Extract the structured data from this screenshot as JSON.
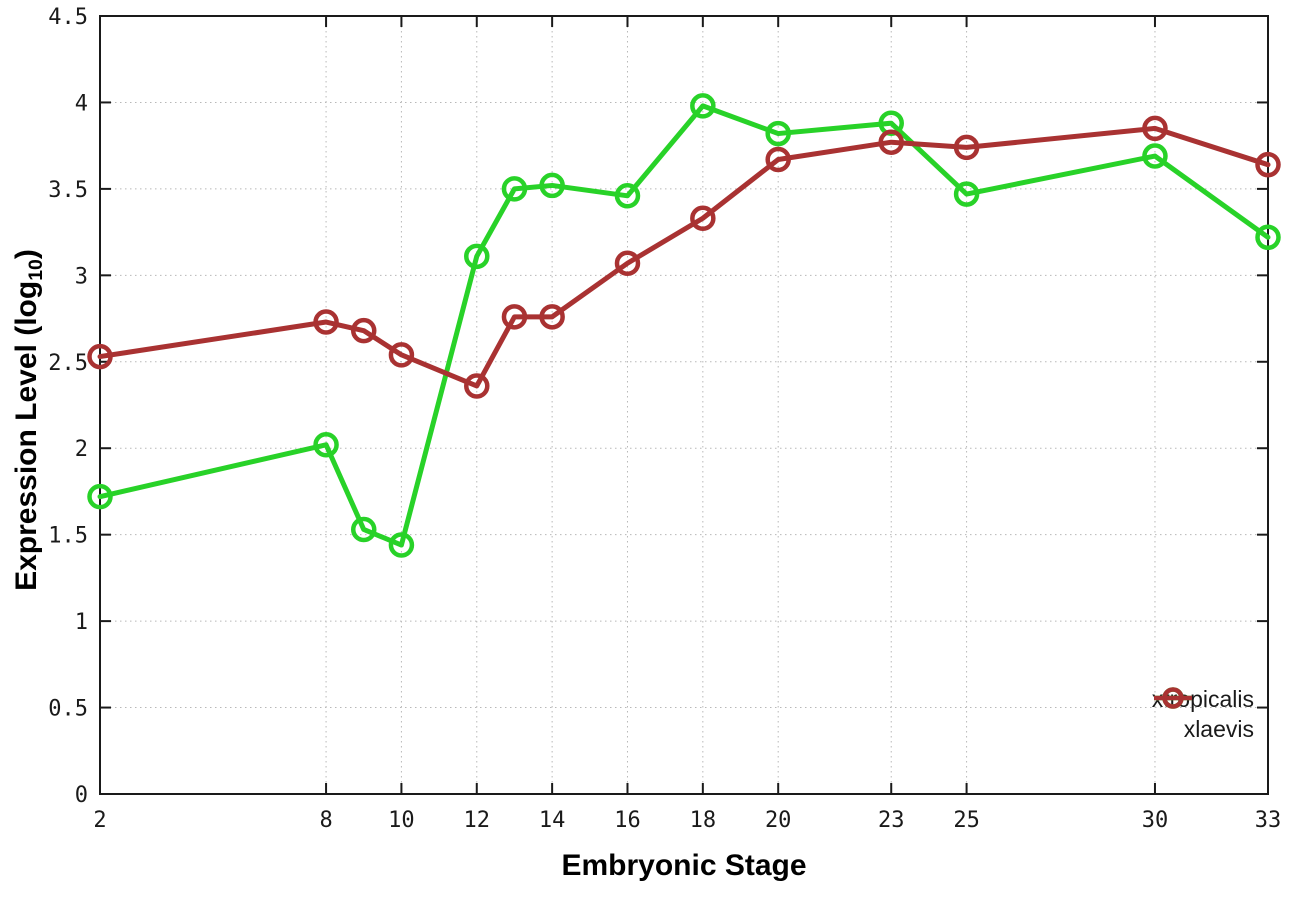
{
  "figure": {
    "xlabel": "Embryonic Stage",
    "ylabel_main": "Expression Level (log",
    "ylabel_sub": "10",
    "ylabel_close": ")"
  },
  "legend": {
    "items": [
      {
        "label": "xtropicalis"
      },
      {
        "label": "xlaevis"
      }
    ]
  },
  "chart_data": {
    "type": "line",
    "title": "",
    "xlabel": "Embryonic Stage",
    "ylabel": "Expression Level (log10)",
    "x": [
      2,
      8,
      9,
      10,
      12,
      13,
      14,
      16,
      18,
      20,
      23,
      25,
      30,
      33
    ],
    "series": [
      {
        "name": "xtropicalis",
        "color": "#28d228",
        "values": [
          1.72,
          2.02,
          1.53,
          1.44,
          3.11,
          3.5,
          3.52,
          3.46,
          3.98,
          3.82,
          3.88,
          3.47,
          3.69,
          3.22
        ]
      },
      {
        "name": "xlaevis",
        "color": "#a93232",
        "values": [
          2.53,
          2.73,
          2.68,
          2.54,
          2.36,
          2.76,
          2.76,
          3.07,
          3.33,
          3.67,
          3.77,
          3.74,
          3.85,
          3.64
        ]
      }
    ],
    "xlim": [
      2,
      33
    ],
    "ylim": [
      0,
      4.5
    ],
    "xticks": [
      2,
      8,
      10,
      12,
      14,
      16,
      18,
      20,
      23,
      25,
      30,
      33
    ],
    "yticks": [
      "0",
      "0.5",
      "1",
      "1.5",
      "2",
      "2.5",
      "3",
      "3.5",
      "4",
      "4.5"
    ],
    "grid": true,
    "grid_style": "dotted",
    "marker": "open-circle",
    "legend_position": "inside-bottom-right",
    "colors": {
      "border": "#1a1a1a",
      "grid": "#b8b8b8",
      "background": "#ffffff"
    }
  }
}
